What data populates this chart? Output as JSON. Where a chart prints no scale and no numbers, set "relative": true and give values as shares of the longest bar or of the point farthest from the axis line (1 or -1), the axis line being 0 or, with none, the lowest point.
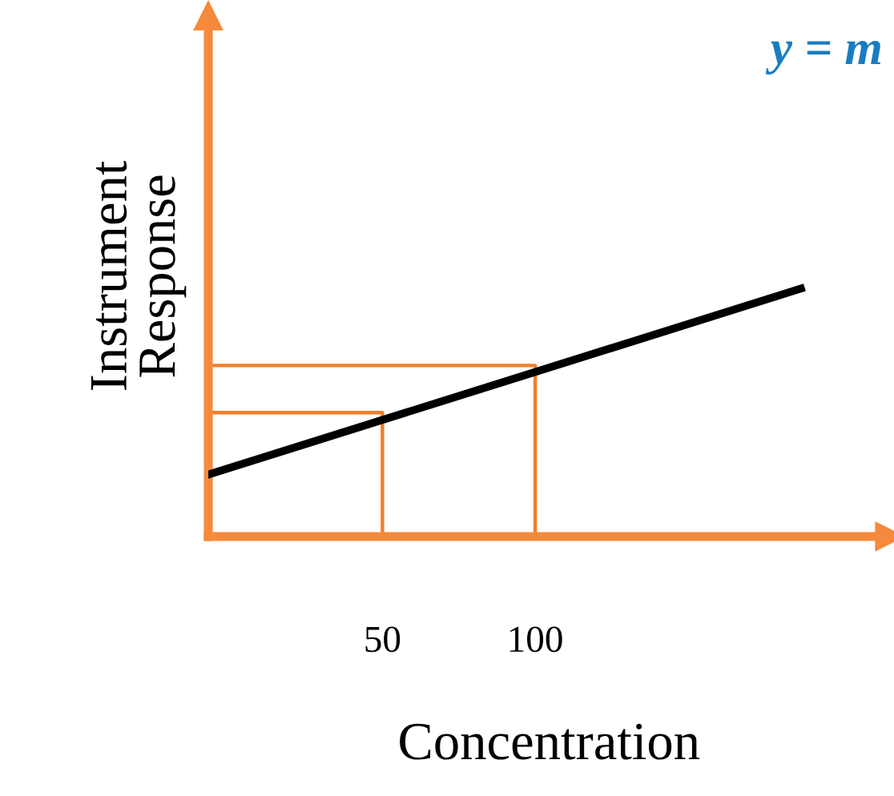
{
  "chart_data": {
    "type": "line",
    "relative": true,
    "xlabel": "Concentration",
    "ylabel": "Instrument\nResponse",
    "xlim": [
      -7,
      216
    ],
    "xticks": [
      50,
      100
    ],
    "tick_labels": "x",
    "grid": false,
    "legend": false,
    "marker": "none",
    "annotations": [
      "y = m"
    ],
    "series": [
      {
        "color": "#000000",
        "x": [
          -7,
          187
        ],
        "values": [
          0.25,
          1
        ]
      },
      {
        "color": "#f07f2a",
        "x": [
          -7,
          50,
          50
        ],
        "values": [
          0.5,
          0.5,
          0
        ]
      },
      {
        "color": "#f07f2a",
        "x": [
          -7,
          100,
          100
        ],
        "values": [
          0.69,
          0.69,
          0
        ]
      }
    ]
  }
}
